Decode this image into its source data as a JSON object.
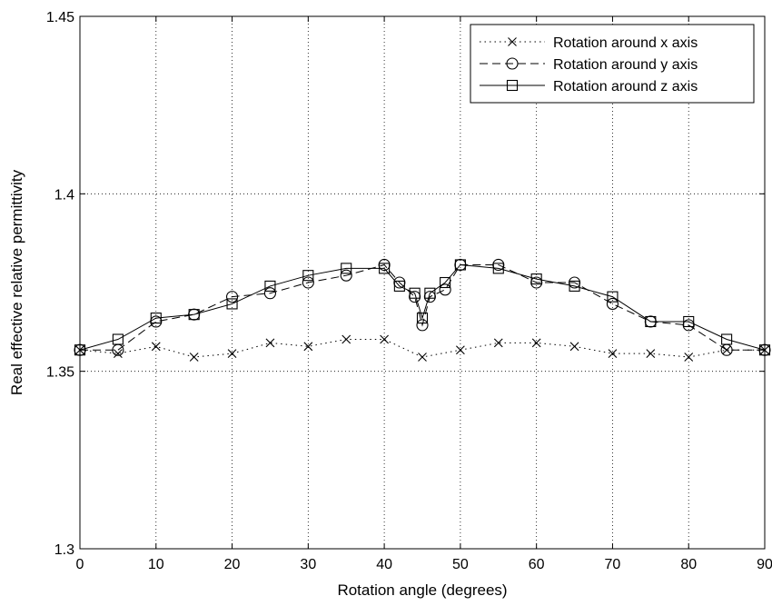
{
  "chart_data": {
    "type": "line",
    "xlabel": "Rotation angle (degrees)",
    "ylabel": "Real effective relative permittivity",
    "xlim": [
      0,
      90
    ],
    "ylim": [
      1.3,
      1.45
    ],
    "xticks": [
      "0",
      "10",
      "20",
      "30",
      "40",
      "50",
      "60",
      "70",
      "80",
      "90"
    ],
    "yticks": [
      "1.3",
      "1.35",
      "1.4",
      "1.45"
    ],
    "grid": true,
    "legend_position": "top-right",
    "series": [
      {
        "name": "Rotation around x axis",
        "marker": "x",
        "line_style": "dotted",
        "x": [
          0,
          5,
          10,
          15,
          20,
          25,
          30,
          35,
          40,
          45,
          50,
          55,
          60,
          65,
          70,
          75,
          80,
          85,
          90
        ],
        "y": [
          1.356,
          1.355,
          1.357,
          1.354,
          1.355,
          1.358,
          1.357,
          1.359,
          1.359,
          1.354,
          1.356,
          1.358,
          1.358,
          1.357,
          1.355,
          1.355,
          1.354,
          1.356,
          1.356
        ]
      },
      {
        "name": "Rotation around y axis",
        "marker": "circle",
        "line_style": "dashed",
        "x": [
          0,
          5,
          10,
          15,
          20,
          25,
          30,
          35,
          40,
          42,
          44,
          45,
          46,
          48,
          50,
          55,
          60,
          65,
          70,
          75,
          80,
          85,
          90
        ],
        "y": [
          1.356,
          1.356,
          1.364,
          1.366,
          1.371,
          1.372,
          1.375,
          1.377,
          1.38,
          1.375,
          1.371,
          1.363,
          1.371,
          1.373,
          1.38,
          1.38,
          1.375,
          1.375,
          1.369,
          1.364,
          1.363,
          1.356,
          1.356
        ]
      },
      {
        "name": "Rotation around z axis",
        "marker": "square",
        "line_style": "solid",
        "x": [
          0,
          5,
          10,
          15,
          20,
          25,
          30,
          35,
          40,
          42,
          44,
          45,
          46,
          48,
          50,
          55,
          60,
          65,
          70,
          75,
          80,
          85,
          90
        ],
        "y": [
          1.356,
          1.359,
          1.365,
          1.366,
          1.369,
          1.374,
          1.377,
          1.379,
          1.379,
          1.374,
          1.372,
          1.365,
          1.372,
          1.375,
          1.38,
          1.379,
          1.376,
          1.374,
          1.371,
          1.364,
          1.364,
          1.359,
          1.356
        ]
      }
    ]
  }
}
